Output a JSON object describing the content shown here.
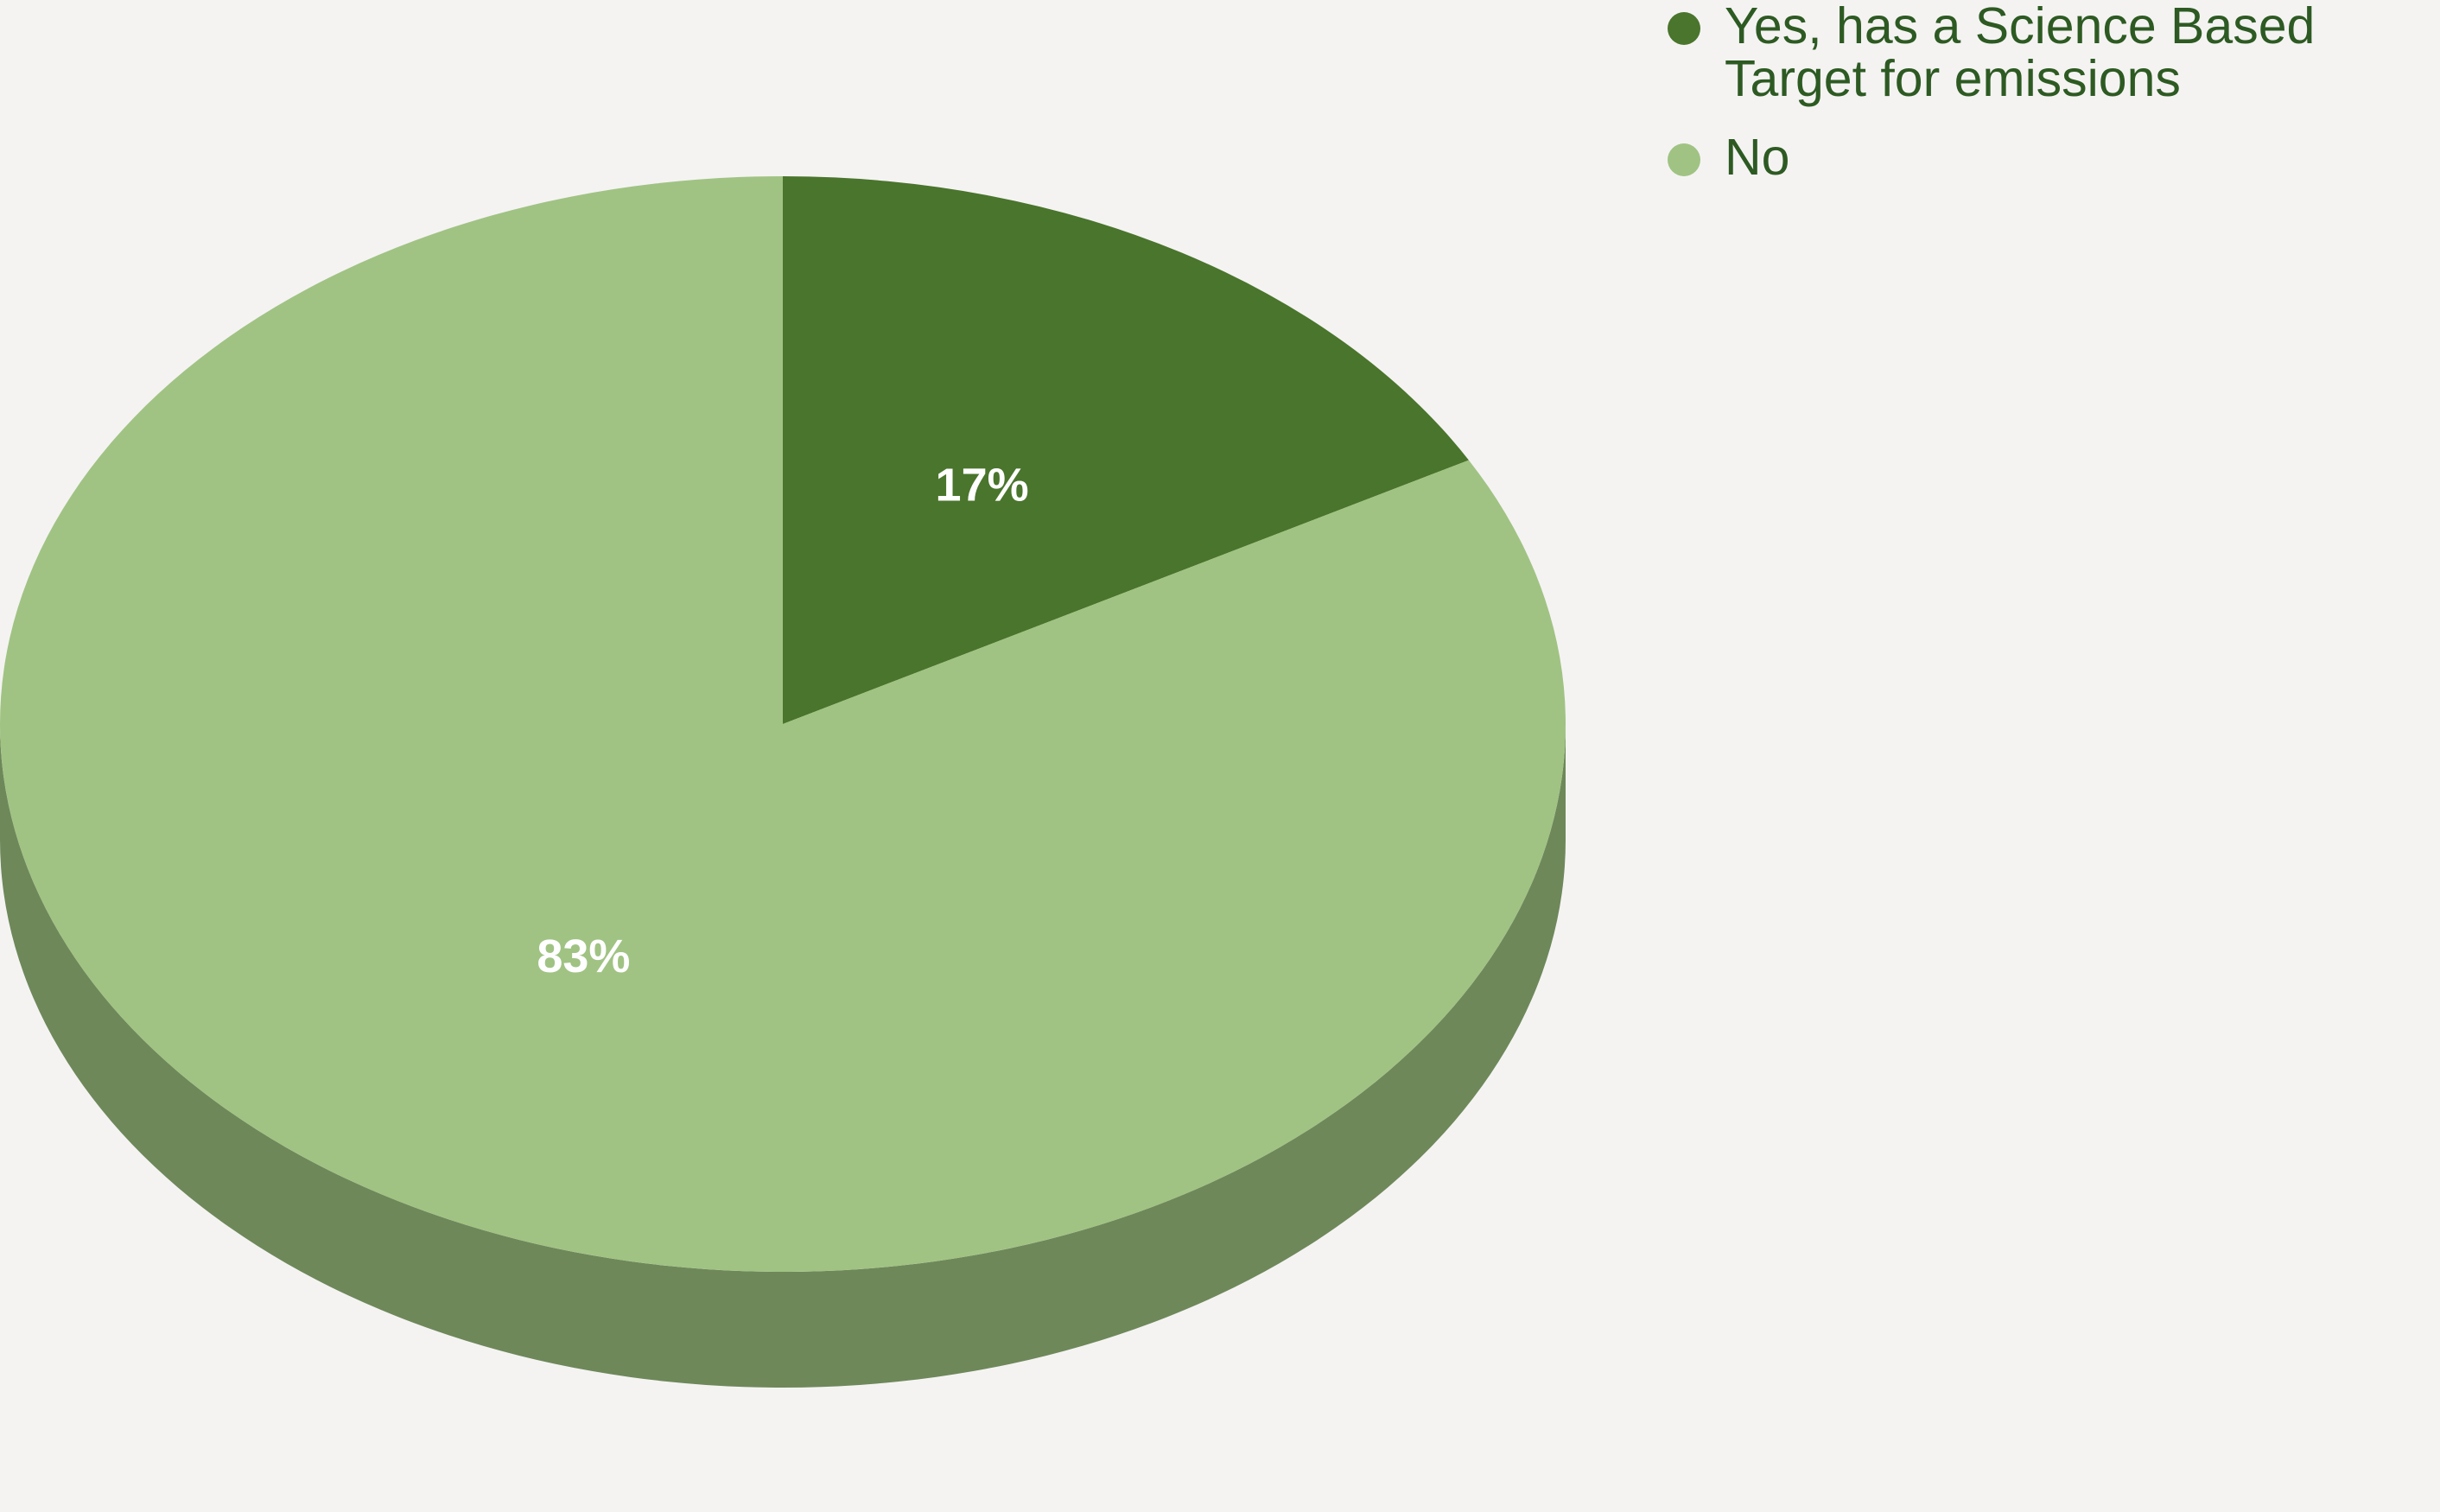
{
  "chart_data": {
    "type": "pie",
    "style": "3d",
    "slices": [
      {
        "name": "Yes, has a Science Based Target for emissions",
        "value": 17,
        "label": "17%",
        "color": "#4a752c"
      },
      {
        "name": "No",
        "value": 83,
        "label": "83%",
        "color": "#a0c383"
      }
    ],
    "side_color": "#6e885a",
    "legend_position": "right-top",
    "legend_text_color": "#2d5a22",
    "label_color": "#ffffff"
  }
}
